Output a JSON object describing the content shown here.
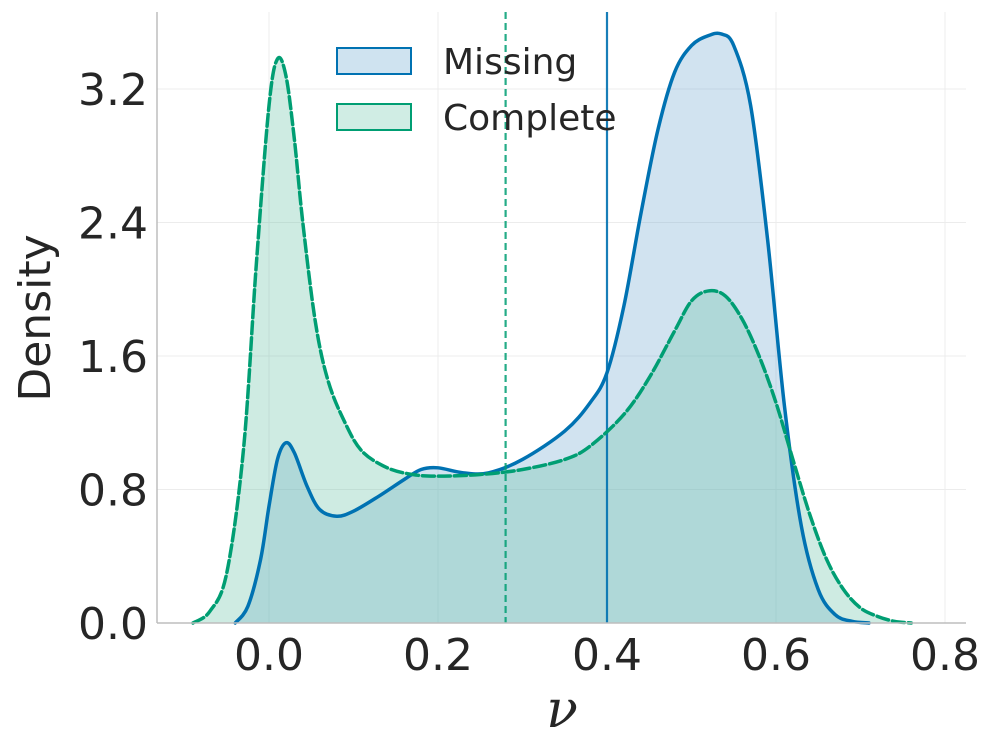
{
  "chart_data": {
    "type": "area",
    "xlabel": "ν",
    "ylabel": "Density",
    "xlim": [
      -0.1,
      0.8
    ],
    "ylim": [
      0.0,
      3.6
    ],
    "xticks": [
      "0.0",
      "0.2",
      "0.4",
      "0.6",
      "0.8"
    ],
    "yticks": [
      "0.0",
      "0.8",
      "1.6",
      "2.4",
      "3.2"
    ],
    "grid": true,
    "legend_position": "top-center",
    "series": [
      {
        "name": "Missing",
        "color": "#0072B2",
        "line_style": "solid",
        "mean": 0.4,
        "x": [
          -0.04,
          -0.025,
          -0.01,
          0.0,
          0.01,
          0.02,
          0.03,
          0.045,
          0.06,
          0.08,
          0.1,
          0.13,
          0.16,
          0.18,
          0.2,
          0.23,
          0.26,
          0.3,
          0.35,
          0.38,
          0.4,
          0.42,
          0.44,
          0.46,
          0.48,
          0.5,
          0.52,
          0.535,
          0.55,
          0.57,
          0.59,
          0.61,
          0.63,
          0.65,
          0.67,
          0.69,
          0.71
        ],
        "y": [
          0.0,
          0.1,
          0.38,
          0.7,
          0.98,
          1.08,
          1.02,
          0.82,
          0.68,
          0.64,
          0.67,
          0.76,
          0.86,
          0.92,
          0.93,
          0.9,
          0.9,
          0.98,
          1.15,
          1.32,
          1.5,
          1.9,
          2.45,
          2.95,
          3.3,
          3.46,
          3.52,
          3.53,
          3.46,
          3.1,
          2.3,
          1.3,
          0.58,
          0.2,
          0.05,
          0.01,
          0.0
        ]
      },
      {
        "name": "Complete",
        "color": "#009E73",
        "line_style": "dashed",
        "mean": 0.28,
        "x": [
          -0.09,
          -0.07,
          -0.05,
          -0.03,
          -0.015,
          0.0,
          0.01,
          0.02,
          0.03,
          0.04,
          0.055,
          0.07,
          0.09,
          0.11,
          0.14,
          0.17,
          0.2,
          0.25,
          0.3,
          0.35,
          0.38,
          0.42,
          0.45,
          0.48,
          0.5,
          0.52,
          0.54,
          0.56,
          0.58,
          0.6,
          0.62,
          0.64,
          0.66,
          0.68,
          0.7,
          0.72,
          0.74,
          0.76
        ],
        "y": [
          0.0,
          0.07,
          0.3,
          1.05,
          2.15,
          3.1,
          3.38,
          3.28,
          2.9,
          2.4,
          1.8,
          1.45,
          1.2,
          1.03,
          0.93,
          0.89,
          0.88,
          0.89,
          0.92,
          0.98,
          1.06,
          1.25,
          1.47,
          1.75,
          1.93,
          1.99,
          1.96,
          1.82,
          1.6,
          1.32,
          0.98,
          0.65,
          0.38,
          0.2,
          0.09,
          0.04,
          0.01,
          0.0
        ]
      }
    ]
  }
}
